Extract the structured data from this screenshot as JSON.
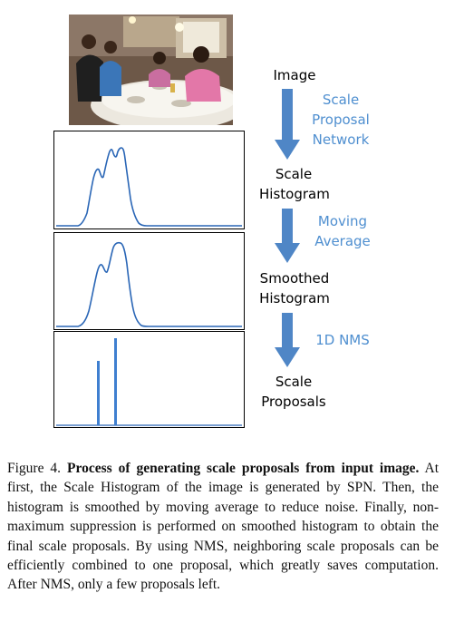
{
  "figure": {
    "steps": {
      "image": [
        "Image"
      ],
      "scale_histogram": [
        "Scale",
        "Histogram"
      ],
      "smoothed_histogram": [
        "Smoothed",
        "Histogram"
      ],
      "scale_proposals": [
        "Scale",
        "Proposals"
      ]
    },
    "transitions": {
      "spn": [
        "Scale",
        "Proposal",
        "Network"
      ],
      "moving_average": [
        "Moving",
        "Average"
      ],
      "nms": [
        "1D NMS"
      ]
    },
    "colors": {
      "arrow": "#4f86c6",
      "transition_text": "#4f8fd0",
      "curve": "#2a66b6",
      "proposal_bar": "#3f7fd0"
    }
  },
  "caption": {
    "label": "Figure 4.",
    "title": "Process of generating scale proposals from input image.",
    "body": "At first, the Scale Histogram of the image is generated by SPN. Then, the histogram is smoothed by moving average to reduce noise. Finally, non-maximum suppression is performed on smoothed histogram to obtain the final scale proposals. By using NMS, neighboring scale proposals can be efficiently combined to one proposal, which greatly saves computation. After NMS, only a few proposals left."
  }
}
